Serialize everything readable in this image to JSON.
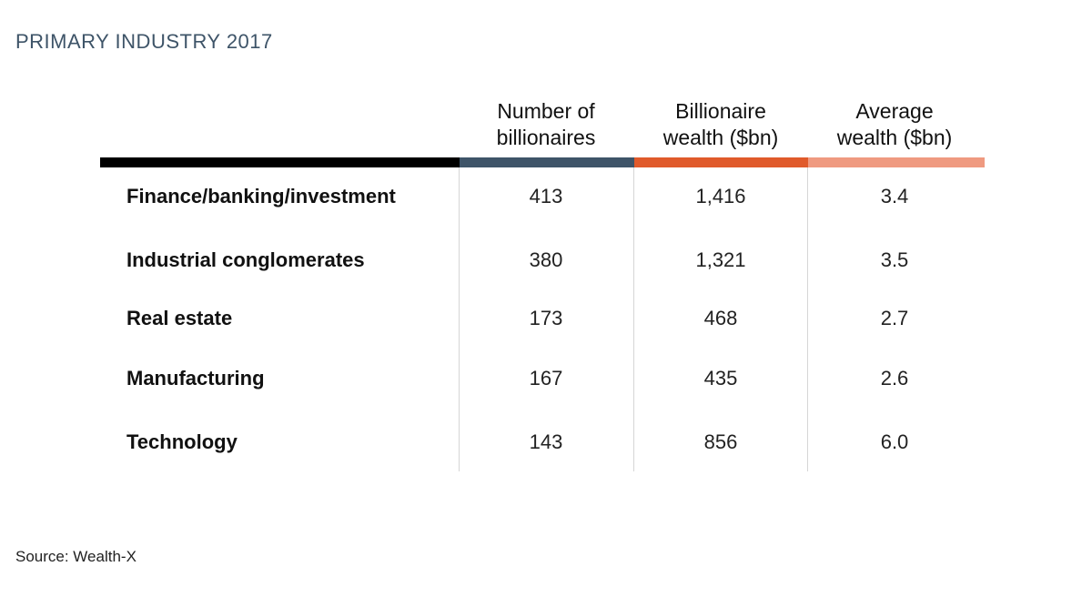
{
  "title": "PRIMARY INDUSTRY 2017",
  "colors": {
    "title": "#3e5468",
    "label_bar": "#000000",
    "count_bar": "#3e5468",
    "wealth_bar": "#e05a2b",
    "average_bar": "#ef9a80"
  },
  "chart_data": {
    "type": "table",
    "columns": [
      {
        "line1": "Number of",
        "line2": "billionaires"
      },
      {
        "line1": "Billionaire",
        "line2": "wealth ($bn)"
      },
      {
        "line1": "Average",
        "line2": "wealth ($bn)"
      }
    ],
    "rows": [
      {
        "label": "Finance/banking/investment",
        "values": [
          "413",
          "1,416",
          "3.4"
        ]
      },
      {
        "label": "Industrial conglomerates",
        "values": [
          "380",
          "1,321",
          "3.5"
        ]
      },
      {
        "label": "Real estate",
        "values": [
          "173",
          "468",
          "2.7"
        ]
      },
      {
        "label": "Manufacturing",
        "values": [
          "167",
          "435",
          "2.6"
        ]
      },
      {
        "label": "Technology",
        "values": [
          "143",
          "856",
          "6.0"
        ]
      }
    ]
  },
  "source": "Source: Wealth-X"
}
